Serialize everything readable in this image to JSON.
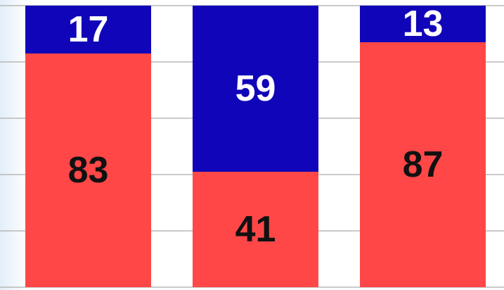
{
  "chart_data": {
    "type": "stacked_bar",
    "categories": [
      null,
      null,
      null
    ],
    "series": [
      {
        "color": "#ff4747",
        "values": [
          83,
          41,
          87
        ]
      },
      {
        "color": "#1005b8",
        "values": [
          17,
          59,
          13
        ]
      }
    ],
    "ylim": [
      0,
      100
    ],
    "yticks": [
      0,
      20,
      40,
      60,
      80,
      100
    ],
    "grid": true
  }
}
